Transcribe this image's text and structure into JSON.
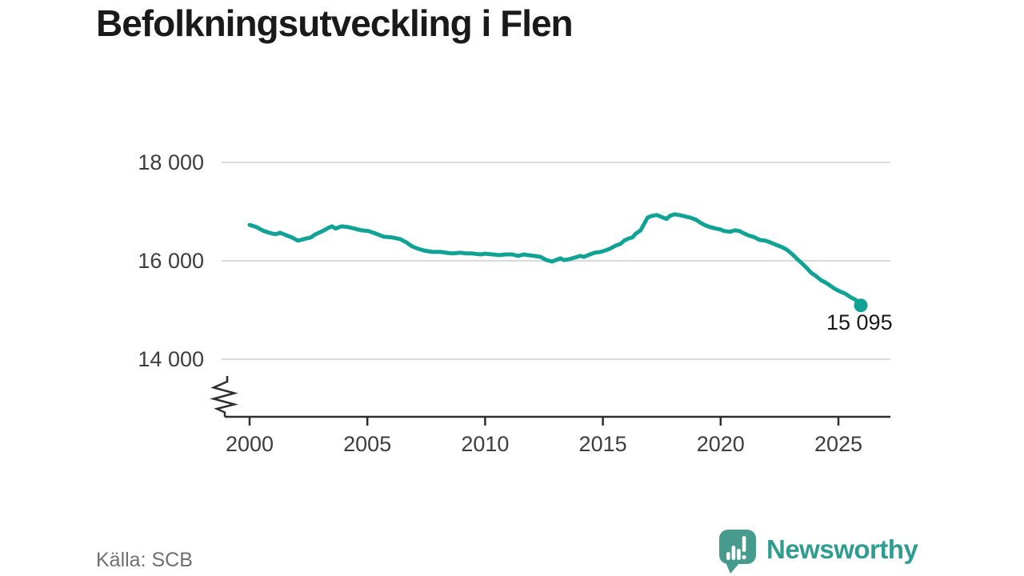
{
  "title": "Befolkningsutveckling i Flen",
  "source": "Källa: SCB",
  "branding": {
    "name": "Newsworthy"
  },
  "colors": {
    "line": "#10A295",
    "logo": "#479B8E",
    "logo_text": "#2F9C90",
    "grid": "#DADADA",
    "axis": "#2E2E2E",
    "title_text": "#1A1A1A",
    "tick_text": "#3D3D3D",
    "source_text": "#6F6F6F"
  },
  "chart_data": {
    "type": "line",
    "title": "Befolkningsutveckling i Flen",
    "xlabel": "",
    "ylabel": "",
    "grid": "horizontal",
    "legend": "none",
    "axis_break_at_bottom": true,
    "x_tick_labels": [
      "2000",
      "2005",
      "2010",
      "2015",
      "2020",
      "2025"
    ],
    "x_tick_years": [
      2000,
      2005,
      2010,
      2015,
      2020,
      2025
    ],
    "y_tick_labels": [
      "18 000",
      "16 000",
      "14 000"
    ],
    "y_tick_values": [
      18000,
      16000,
      14000
    ],
    "ylim_gridlines": [
      14000,
      18000
    ],
    "x_range": [
      2000,
      2026
    ],
    "end_label": "15 095",
    "end_value": 15095,
    "series": [
      {
        "points": [
          [
            2000.0,
            16730
          ],
          [
            2000.3,
            16685
          ],
          [
            2000.6,
            16605
          ],
          [
            2000.95,
            16555
          ],
          [
            2001.1,
            16540
          ],
          [
            2001.3,
            16570
          ],
          [
            2001.55,
            16520
          ],
          [
            2001.8,
            16475
          ],
          [
            2002.05,
            16410
          ],
          [
            2002.3,
            16440
          ],
          [
            2002.6,
            16475
          ],
          [
            2002.8,
            16540
          ],
          [
            2003.1,
            16605
          ],
          [
            2003.35,
            16670
          ],
          [
            2003.5,
            16700
          ],
          [
            2003.65,
            16655
          ],
          [
            2003.9,
            16700
          ],
          [
            2004.2,
            16685
          ],
          [
            2004.45,
            16655
          ],
          [
            2004.75,
            16620
          ],
          [
            2005.05,
            16605
          ],
          [
            2005.35,
            16555
          ],
          [
            2005.7,
            16490
          ],
          [
            2006.05,
            16475
          ],
          [
            2006.4,
            16440
          ],
          [
            2006.65,
            16375
          ],
          [
            2006.9,
            16295
          ],
          [
            2007.15,
            16245
          ],
          [
            2007.4,
            16210
          ],
          [
            2007.75,
            16180
          ],
          [
            2008.1,
            16180
          ],
          [
            2008.35,
            16165
          ],
          [
            2008.6,
            16150
          ],
          [
            2008.95,
            16165
          ],
          [
            2009.2,
            16150
          ],
          [
            2009.45,
            16150
          ],
          [
            2009.8,
            16130
          ],
          [
            2010.0,
            16145
          ],
          [
            2010.3,
            16130
          ],
          [
            2010.6,
            16115
          ],
          [
            2010.9,
            16130
          ],
          [
            2011.15,
            16130
          ],
          [
            2011.4,
            16100
          ],
          [
            2011.65,
            16130
          ],
          [
            2011.8,
            16115
          ],
          [
            2012.1,
            16100
          ],
          [
            2012.35,
            16080
          ],
          [
            2012.6,
            16015
          ],
          [
            2012.85,
            15985
          ],
          [
            2013.0,
            16015
          ],
          [
            2013.2,
            16050
          ],
          [
            2013.35,
            16015
          ],
          [
            2013.6,
            16035
          ],
          [
            2013.8,
            16065
          ],
          [
            2014.05,
            16100
          ],
          [
            2014.2,
            16080
          ],
          [
            2014.45,
            16130
          ],
          [
            2014.65,
            16165
          ],
          [
            2014.9,
            16180
          ],
          [
            2015.1,
            16210
          ],
          [
            2015.3,
            16245
          ],
          [
            2015.55,
            16310
          ],
          [
            2015.75,
            16345
          ],
          [
            2015.9,
            16410
          ],
          [
            2016.1,
            16455
          ],
          [
            2016.25,
            16475
          ],
          [
            2016.4,
            16555
          ],
          [
            2016.6,
            16620
          ],
          [
            2016.75,
            16750
          ],
          [
            2016.9,
            16880
          ],
          [
            2017.1,
            16915
          ],
          [
            2017.3,
            16930
          ],
          [
            2017.55,
            16880
          ],
          [
            2017.7,
            16850
          ],
          [
            2017.85,
            16915
          ],
          [
            2018.05,
            16945
          ],
          [
            2018.25,
            16930
          ],
          [
            2018.5,
            16900
          ],
          [
            2018.7,
            16880
          ],
          [
            2018.95,
            16835
          ],
          [
            2019.15,
            16770
          ],
          [
            2019.35,
            16720
          ],
          [
            2019.55,
            16685
          ],
          [
            2019.8,
            16655
          ],
          [
            2020.0,
            16635
          ],
          [
            2020.15,
            16605
          ],
          [
            2020.4,
            16590
          ],
          [
            2020.6,
            16620
          ],
          [
            2020.8,
            16605
          ],
          [
            2021.0,
            16555
          ],
          [
            2021.25,
            16505
          ],
          [
            2021.45,
            16475
          ],
          [
            2021.65,
            16425
          ],
          [
            2021.9,
            16410
          ],
          [
            2022.1,
            16375
          ],
          [
            2022.35,
            16325
          ],
          [
            2022.6,
            16280
          ],
          [
            2022.8,
            16230
          ],
          [
            2023.05,
            16130
          ],
          [
            2023.25,
            16035
          ],
          [
            2023.45,
            15950
          ],
          [
            2023.65,
            15855
          ],
          [
            2023.85,
            15755
          ],
          [
            2024.05,
            15690
          ],
          [
            2024.25,
            15610
          ],
          [
            2024.45,
            15560
          ],
          [
            2024.65,
            15495
          ],
          [
            2024.85,
            15430
          ],
          [
            2025.05,
            15380
          ],
          [
            2025.3,
            15330
          ],
          [
            2025.5,
            15265
          ],
          [
            2025.7,
            15215
          ],
          [
            2025.85,
            15165
          ],
          [
            2025.95,
            15095
          ]
        ]
      }
    ]
  }
}
